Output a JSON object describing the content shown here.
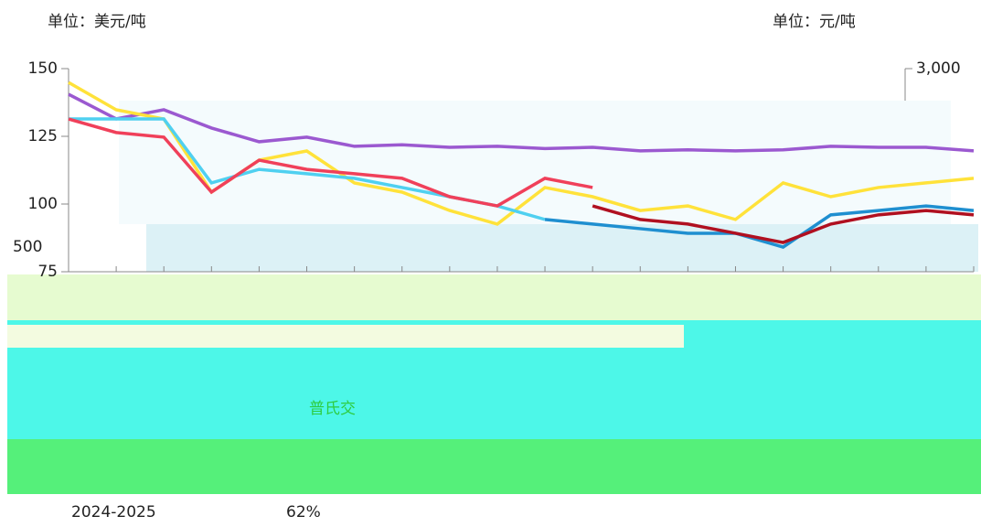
{
  "chart_data": {
    "type": "line",
    "unit_left": "单位：美元/吨",
    "unit_right": "单位：元/吨",
    "categories": [
      null,
      null,
      null,
      null,
      null,
      null,
      null,
      null,
      null,
      null,
      null,
      null,
      null,
      null,
      null,
      null,
      null,
      null,
      null,
      null
    ],
    "ylim": [
      75,
      150
    ],
    "yticks": [
      75,
      100,
      125,
      150
    ],
    "y2lim": [
      2200,
      3000
    ],
    "y2ticks": [
      {
        "value": 3000,
        "label": "3,000"
      }
    ],
    "series": [
      {
        "color": "#9b59d0",
        "axis": "y2",
        "values": [
          2899,
          2802,
          2838,
          2766,
          2712,
          2730,
          2694,
          2700,
          2690,
          2694,
          2685,
          2690,
          2676,
          2680,
          2676,
          2680,
          2694,
          2690,
          2690,
          2676
        ]
      },
      {
        "color": "#ffe23a",
        "values": [
          144.9,
          134.8,
          131.4,
          104.4,
          116.2,
          119.6,
          107.8,
          104.4,
          97.6,
          92.6,
          106.1,
          102.7,
          97.6,
          99.3,
          94.3,
          107.8,
          102.7,
          106.1,
          107.8,
          109.5
        ]
      },
      {
        "color": "#4fd0f0",
        "values": [
          131.4,
          131.4,
          131.4,
          107.8,
          112.8,
          111.2,
          109.5,
          106.1,
          102.7,
          99.3,
          94.3,
          null,
          null,
          null,
          null,
          null,
          null,
          null,
          null,
          null
        ]
      },
      {
        "color": "#1f8fd0",
        "values": [
          null,
          null,
          null,
          null,
          null,
          null,
          null,
          null,
          null,
          null,
          94.3,
          92.6,
          90.9,
          89.2,
          89.2,
          84.1,
          96.0,
          97.6,
          99.3,
          97.6
        ]
      },
      {
        "color": "#f0405a",
        "values": [
          131.4,
          126.4,
          124.7,
          104.4,
          116.2,
          112.8,
          111.2,
          109.5,
          102.7,
          99.3,
          109.5,
          106.1,
          null,
          null,
          null,
          null,
          null,
          null,
          null,
          null
        ]
      },
      {
        "color": "#b01020",
        "values": [
          null,
          null,
          null,
          null,
          null,
          null,
          null,
          null,
          null,
          null,
          null,
          99.3,
          94.3,
          92.6,
          89.2,
          85.8,
          92.6,
          96.0,
          97.6,
          96.0
        ]
      }
    ],
    "annotations": [
      "普氏交",
      "500"
    ]
  },
  "footer": {
    "period": "2024-2025",
    "share": "62%"
  }
}
